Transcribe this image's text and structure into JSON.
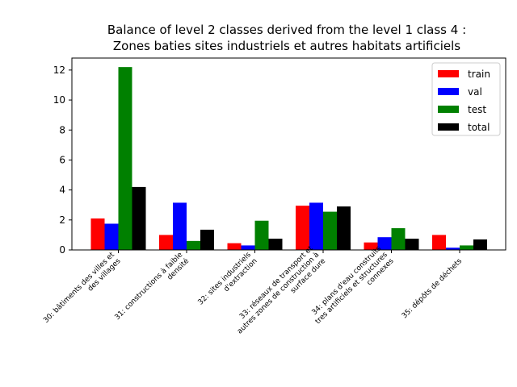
{
  "chart_data": {
    "type": "bar",
    "title_lines": [
      "Balance of level 2 classes derived from the level 1 class 4 :",
      "Zones baties sites industriels et autres habitats artificiels"
    ],
    "xlabel": "",
    "ylabel": "",
    "categories": [
      [
        "30: bâtiments des villes et",
        "des villages"
      ],
      [
        "31: constructions à faible",
        "densité"
      ],
      [
        "32: sites industriels",
        "d'extraction"
      ],
      [
        "33: réseaux de transport et",
        "autres zones de construction à",
        "surface dure"
      ],
      [
        "34: plans d'eau construits",
        "tres artificiels et structures",
        "connexes"
      ],
      [
        "35: dépôts de déchets"
      ]
    ],
    "series": [
      {
        "name": "train",
        "color": "#ff0000",
        "values": [
          2.1,
          1.0,
          0.45,
          2.95,
          0.5,
          1.0
        ]
      },
      {
        "name": "val",
        "color": "#0000ff",
        "values": [
          1.75,
          3.15,
          0.3,
          3.15,
          0.85,
          0.15
        ]
      },
      {
        "name": "test",
        "color": "#008000",
        "values": [
          12.2,
          0.6,
          1.95,
          2.55,
          1.45,
          0.3
        ]
      },
      {
        "name": "total",
        "color": "#000000",
        "values": [
          4.2,
          1.35,
          0.75,
          2.9,
          0.75,
          0.7
        ]
      }
    ],
    "ylim": [
      0,
      12.8
    ],
    "yticks": [
      0,
      2,
      4,
      6,
      8,
      10,
      12
    ],
    "grid": false,
    "legend_position": "top-right"
  }
}
